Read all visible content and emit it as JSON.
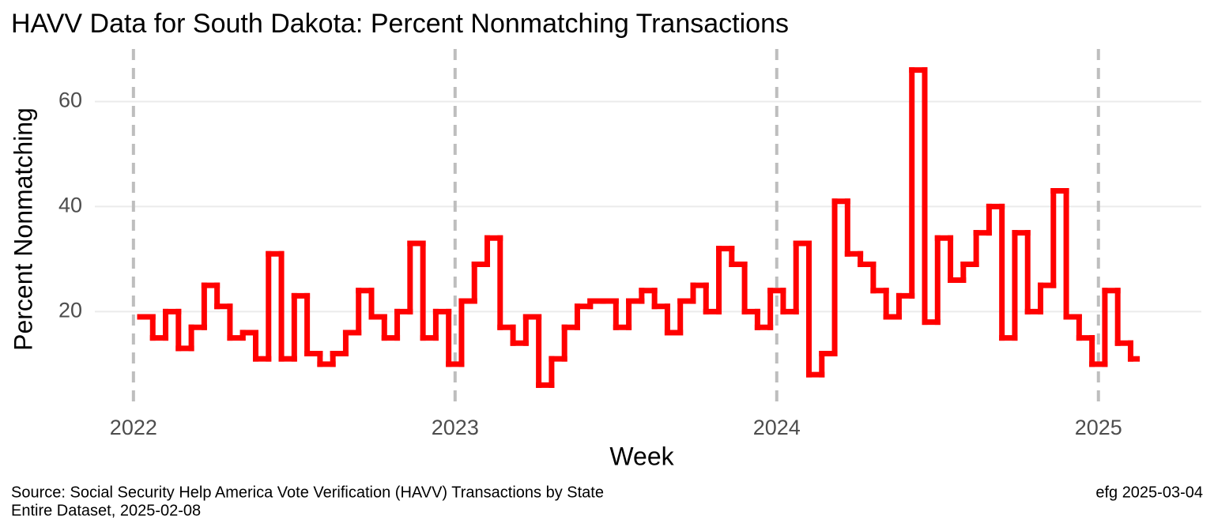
{
  "chart_data": {
    "type": "step-line",
    "title": "HAVV Data for South Dakota:  Percent Nonmatching Transactions",
    "x_label": "Week",
    "y_label": "Percent Nonmatching",
    "caption": [
      "Source:  Social Security Help America Vote Verification (HAVV) Transactions by State",
      "Entire Dataset, 2025-02-08"
    ],
    "caption_right": "efg 2025-03-04",
    "x": [
      2022.02,
      2022.06,
      2022.1,
      2022.14,
      2022.18,
      2022.22,
      2022.26,
      2022.3,
      2022.34,
      2022.38,
      2022.42,
      2022.46,
      2022.5,
      2022.54,
      2022.58,
      2022.62,
      2022.66,
      2022.7,
      2022.74,
      2022.78,
      2022.82,
      2022.86,
      2022.9,
      2022.94,
      2022.98,
      2023.02,
      2023.06,
      2023.1,
      2023.14,
      2023.18,
      2023.22,
      2023.26,
      2023.3,
      2023.34,
      2023.38,
      2023.42,
      2023.46,
      2023.5,
      2023.54,
      2023.58,
      2023.62,
      2023.66,
      2023.7,
      2023.74,
      2023.78,
      2023.82,
      2023.86,
      2023.9,
      2023.94,
      2023.98,
      2024.02,
      2024.06,
      2024.1,
      2024.14,
      2024.18,
      2024.22,
      2024.26,
      2024.3,
      2024.34,
      2024.38,
      2024.42,
      2024.46,
      2024.5,
      2024.54,
      2024.58,
      2024.62,
      2024.66,
      2024.7,
      2024.74,
      2024.78,
      2024.82,
      2024.86,
      2024.9,
      2024.94,
      2024.98,
      2025.02,
      2025.06,
      2025.1
    ],
    "series": [
      {
        "name": "Percent Nonmatching",
        "color": "#ff0000",
        "values": [
          19,
          15,
          20,
          13,
          17,
          25,
          21,
          15,
          16,
          11,
          31,
          11,
          23,
          12,
          10,
          12,
          16,
          24,
          19,
          15,
          20,
          33,
          15,
          20,
          10,
          22,
          29,
          34,
          17,
          14,
          19,
          6,
          11,
          17,
          21,
          22,
          22,
          17,
          22,
          24,
          21,
          16,
          22,
          25,
          20,
          32,
          29,
          20,
          17,
          24,
          20,
          33,
          8,
          12,
          41,
          31,
          29,
          24,
          19,
          23,
          66,
          18,
          34,
          26,
          29,
          35,
          40,
          15,
          35,
          20,
          25,
          43,
          19,
          15,
          10,
          24,
          14,
          11
        ]
      }
    ],
    "xlim": [
      2021.88,
      2025.32
    ],
    "ylim": [
      2,
      70
    ],
    "xticks": [
      2022,
      2023,
      2024,
      2025
    ],
    "yticks": [
      20,
      40,
      60
    ],
    "grid": true
  }
}
